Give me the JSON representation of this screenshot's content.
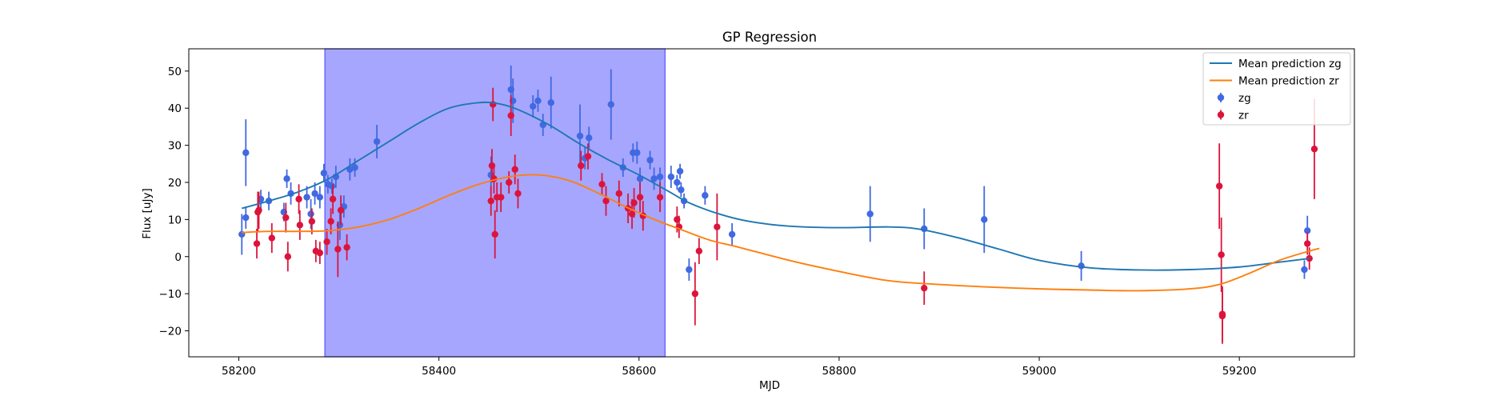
{
  "chart_data": {
    "type": "line",
    "title": "GP Regression",
    "xlabel": "MJD",
    "ylabel": "Flux [uJy]",
    "xlim": [
      58150,
      59315
    ],
    "ylim": [
      -27,
      56
    ],
    "xticks": [
      58200,
      58400,
      58600,
      58800,
      59000,
      59200
    ],
    "yticks": [
      -20,
      -10,
      0,
      10,
      20,
      30,
      40,
      50
    ],
    "grid": false,
    "legend_position": "top-right",
    "shaded_region": {
      "x0": 58286,
      "x1": 58626,
      "color": "#a6a6ff"
    },
    "colors": {
      "mean_zg": "#1f77b4",
      "mean_zr": "#ff7f0e",
      "zg": "#4169e1",
      "zr": "#dc143c"
    },
    "lines": [
      {
        "name": "Mean prediction zg",
        "color": "#1f77b4",
        "x": [
          58203,
          58230,
          58260,
          58290,
          58320,
          58350,
          58380,
          58410,
          58440,
          58460,
          58480,
          58510,
          58540,
          58570,
          58600,
          58630,
          58650,
          58680,
          58710,
          58750,
          58800,
          58850,
          58880,
          58920,
          58960,
          59000,
          59050,
          59100,
          59150,
          59200,
          59240,
          59270
        ],
        "y": [
          13.0,
          15.0,
          17.5,
          21.0,
          26.0,
          31.0,
          36.0,
          40.0,
          41.5,
          41.2,
          39.5,
          35.5,
          30.5,
          26.0,
          22.0,
          17.5,
          14.5,
          11.5,
          9.5,
          8.2,
          7.8,
          8.0,
          7.4,
          5.0,
          2.0,
          -1.0,
          -3.0,
          -3.6,
          -3.5,
          -2.8,
          -1.5,
          -0.5
        ]
      },
      {
        "name": "Mean prediction zr",
        "color": "#ff7f0e",
        "x": [
          58203,
          58230,
          58260,
          58290,
          58320,
          58350,
          58380,
          58410,
          58440,
          58470,
          58500,
          58530,
          58560,
          58590,
          58620,
          58640,
          58670,
          58700,
          58750,
          58800,
          58850,
          58900,
          58950,
          59000,
          59050,
          59100,
          59150,
          59180,
          59210,
          59240,
          59270,
          59280
        ],
        "y": [
          6.5,
          6.8,
          6.8,
          7.0,
          8.0,
          10.0,
          13.0,
          16.5,
          19.5,
          21.5,
          22.0,
          20.5,
          17.0,
          13.0,
          9.5,
          7.5,
          4.5,
          2.5,
          -1.0,
          -4.0,
          -6.5,
          -7.5,
          -8.2,
          -8.7,
          -9.0,
          -9.2,
          -8.7,
          -7.5,
          -4.5,
          -1.0,
          1.5,
          2.2
        ]
      }
    ],
    "series": [
      {
        "name": "zg",
        "color": "#4169e1",
        "points": [
          {
            "x": 58203,
            "y": 6,
            "err": 5.5
          },
          {
            "x": 58207,
            "y": 28,
            "err": 9
          },
          {
            "x": 58207,
            "y": 10.5,
            "err": 3
          },
          {
            "x": 58222,
            "y": 15.5,
            "err": 2.5
          },
          {
            "x": 58230,
            "y": 15,
            "err": 2.5
          },
          {
            "x": 58245,
            "y": 12,
            "err": 2.5
          },
          {
            "x": 58248,
            "y": 21,
            "err": 2.5
          },
          {
            "x": 58252,
            "y": 17,
            "err": 3
          },
          {
            "x": 58268,
            "y": 16,
            "err": 3
          },
          {
            "x": 58272,
            "y": 11.5,
            "err": 4
          },
          {
            "x": 58276,
            "y": 17,
            "err": 3
          },
          {
            "x": 58281,
            "y": 16,
            "err": 3
          },
          {
            "x": 58285,
            "y": 22.5,
            "err": 2.5
          },
          {
            "x": 58289,
            "y": 19.5,
            "err": 2.5
          },
          {
            "x": 58293,
            "y": 19,
            "err": 2
          },
          {
            "x": 58297,
            "y": 21.5,
            "err": 3
          },
          {
            "x": 58301,
            "y": 8.5,
            "err": 4
          },
          {
            "x": 58305,
            "y": 13.5,
            "err": 3
          },
          {
            "x": 58311,
            "y": 23.5,
            "err": 3
          },
          {
            "x": 58316,
            "y": 24,
            "err": 2.5
          },
          {
            "x": 58338,
            "y": 31,
            "err": 4.5
          },
          {
            "x": 58452,
            "y": 22,
            "err": 5
          },
          {
            "x": 58472,
            "y": 45,
            "err": 6.5
          },
          {
            "x": 58474,
            "y": 42,
            "err": 6
          },
          {
            "x": 58494,
            "y": 40.5,
            "err": 3
          },
          {
            "x": 58499,
            "y": 42,
            "err": 3
          },
          {
            "x": 58504,
            "y": 35.5,
            "err": 3
          },
          {
            "x": 58512,
            "y": 41.5,
            "err": 7
          },
          {
            "x": 58541,
            "y": 32.5,
            "err": 8.5
          },
          {
            "x": 58546,
            "y": 26.5,
            "err": 3
          },
          {
            "x": 58550,
            "y": 32,
            "err": 3
          },
          {
            "x": 58572,
            "y": 41,
            "err": 9.5
          },
          {
            "x": 58584,
            "y": 24,
            "err": 2.5
          },
          {
            "x": 58594,
            "y": 28,
            "err": 2.5
          },
          {
            "x": 58598,
            "y": 28,
            "err": 3
          },
          {
            "x": 58601,
            "y": 21,
            "err": 3
          },
          {
            "x": 58611,
            "y": 26,
            "err": 2.5
          },
          {
            "x": 58615,
            "y": 21,
            "err": 3
          },
          {
            "x": 58621,
            "y": 21.5,
            "err": 2.5
          },
          {
            "x": 58632,
            "y": 21.5,
            "err": 3
          },
          {
            "x": 58638,
            "y": 20,
            "err": 2
          },
          {
            "x": 58641,
            "y": 23,
            "err": 2
          },
          {
            "x": 58642,
            "y": 18,
            "err": 2
          },
          {
            "x": 58645,
            "y": 15,
            "err": 2
          },
          {
            "x": 58650,
            "y": -3.5,
            "err": 3
          },
          {
            "x": 58666,
            "y": 16.5,
            "err": 2.5
          },
          {
            "x": 58693,
            "y": 6,
            "err": 3
          },
          {
            "x": 58831,
            "y": 11.5,
            "err": 7.5
          },
          {
            "x": 58885,
            "y": 7.5,
            "err": 5.5
          },
          {
            "x": 58945,
            "y": 10,
            "err": 9
          },
          {
            "x": 59042,
            "y": -2.5,
            "err": 4
          },
          {
            "x": 59265,
            "y": -3.5,
            "err": 2.5
          },
          {
            "x": 59268,
            "y": 7,
            "err": 4
          }
        ]
      },
      {
        "name": "zr",
        "color": "#dc143c",
        "points": [
          {
            "x": 58218,
            "y": 3.5,
            "err": 4
          },
          {
            "x": 58219,
            "y": 12,
            "err": 5.5
          },
          {
            "x": 58220,
            "y": 12.5,
            "err": 5
          },
          {
            "x": 58233,
            "y": 5,
            "err": 4
          },
          {
            "x": 58247,
            "y": 10.5,
            "err": 4
          },
          {
            "x": 58249,
            "y": 0,
            "err": 4
          },
          {
            "x": 58260,
            "y": 15.5,
            "err": 4
          },
          {
            "x": 58261,
            "y": 8.5,
            "err": 4
          },
          {
            "x": 58273,
            "y": 9.5,
            "err": 3.5
          },
          {
            "x": 58277,
            "y": 1.5,
            "err": 3
          },
          {
            "x": 58281,
            "y": 1,
            "err": 3
          },
          {
            "x": 58288,
            "y": 4,
            "err": 3.5
          },
          {
            "x": 58292,
            "y": 9.5,
            "err": 3.5
          },
          {
            "x": 58294,
            "y": 15.5,
            "err": 4
          },
          {
            "x": 58299,
            "y": 2,
            "err": 7.5
          },
          {
            "x": 58302,
            "y": 12.5,
            "err": 4
          },
          {
            "x": 58308,
            "y": 2.5,
            "err": 3.5
          },
          {
            "x": 58452,
            "y": 15,
            "err": 4
          },
          {
            "x": 58453,
            "y": 24.5,
            "err": 4.5
          },
          {
            "x": 58454,
            "y": 41,
            "err": 4.5
          },
          {
            "x": 58455,
            "y": 21,
            "err": 4
          },
          {
            "x": 58456,
            "y": 6,
            "err": 6.5
          },
          {
            "x": 58458,
            "y": 16,
            "err": 4
          },
          {
            "x": 58462,
            "y": 16,
            "err": 4
          },
          {
            "x": 58470,
            "y": 20,
            "err": 3
          },
          {
            "x": 58472,
            "y": 38,
            "err": 5.5
          },
          {
            "x": 58476,
            "y": 23.5,
            "err": 4
          },
          {
            "x": 58479,
            "y": 17,
            "err": 4
          },
          {
            "x": 58542,
            "y": 24.5,
            "err": 4
          },
          {
            "x": 58549,
            "y": 27,
            "err": 3.5
          },
          {
            "x": 58563,
            "y": 19.5,
            "err": 3
          },
          {
            "x": 58567,
            "y": 15,
            "err": 4
          },
          {
            "x": 58580,
            "y": 17,
            "err": 3.5
          },
          {
            "x": 58589,
            "y": 13,
            "err": 4
          },
          {
            "x": 58593,
            "y": 11.5,
            "err": 4
          },
          {
            "x": 58595,
            "y": 14.5,
            "err": 4
          },
          {
            "x": 58601,
            "y": 16,
            "err": 4
          },
          {
            "x": 58604,
            "y": 11,
            "err": 4
          },
          {
            "x": 58621,
            "y": 16,
            "err": 4
          },
          {
            "x": 58638,
            "y": 10,
            "err": 3.5
          },
          {
            "x": 58640,
            "y": 8,
            "err": 3
          },
          {
            "x": 58656,
            "y": -10,
            "err": 8.5
          },
          {
            "x": 58660,
            "y": 1.5,
            "err": 3.5
          },
          {
            "x": 58678,
            "y": 8,
            "err": 9
          },
          {
            "x": 58885,
            "y": -8.5,
            "err": 4.5
          },
          {
            "x": 59180,
            "y": 19,
            "err": 11.5
          },
          {
            "x": 59182,
            "y": 0.5,
            "err": 10
          },
          {
            "x": 59183,
            "y": -16,
            "err": 7.5
          },
          {
            "x": 59183,
            "y": -15.5,
            "err": 7.5
          },
          {
            "x": 59268,
            "y": 3.5,
            "err": 3
          },
          {
            "x": 59270,
            "y": -0.5,
            "err": 3
          },
          {
            "x": 59275,
            "y": 29,
            "err": 13.5
          }
        ]
      }
    ],
    "legend": [
      {
        "label": "Mean prediction zg",
        "kind": "line",
        "color": "#1f77b4"
      },
      {
        "label": "Mean prediction zr",
        "kind": "line",
        "color": "#ff7f0e"
      },
      {
        "label": "zg",
        "kind": "marker",
        "color": "#4169e1"
      },
      {
        "label": "zr",
        "kind": "marker",
        "color": "#dc143c"
      }
    ]
  }
}
